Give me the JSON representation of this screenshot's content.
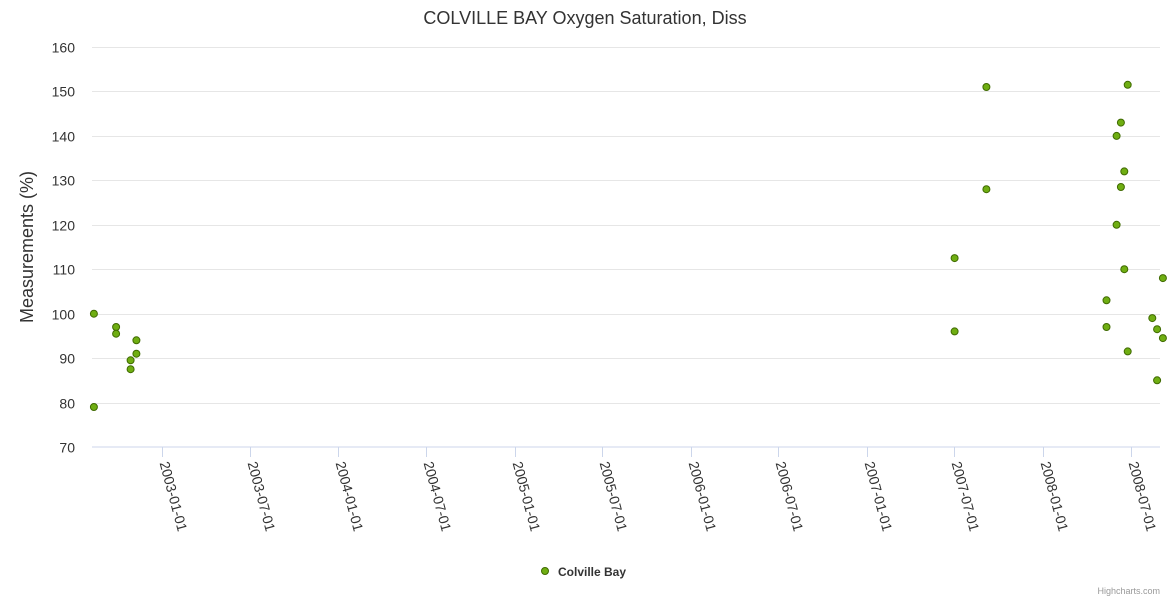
{
  "chart_data": {
    "type": "scatter",
    "title": "COLVILLE BAY Oxygen Saturation, Diss",
    "ylabel": "Measurements (%)",
    "xlabel": "",
    "ylim": [
      70,
      160
    ],
    "yticks": [
      70,
      80,
      90,
      100,
      110,
      120,
      130,
      140,
      150,
      160
    ],
    "xlim": [
      "2002-08-08",
      "2008-08-31"
    ],
    "xticks": [
      "2003-01-01",
      "2003-07-01",
      "2004-01-01",
      "2004-07-01",
      "2005-01-01",
      "2005-07-01",
      "2006-01-01",
      "2006-07-01",
      "2007-01-01",
      "2007-07-01",
      "2008-01-01",
      "2008-07-01"
    ],
    "legend_position": "bottom-center",
    "series": [
      {
        "name": "Colville Bay",
        "color": "#7cb5ec",
        "marker_fill": "#6fae12",
        "marker_stroke": "#3f6a00",
        "points": [
          {
            "x": "2002-08-12",
            "y": 100
          },
          {
            "x": "2002-08-12",
            "y": 79
          },
          {
            "x": "2002-09-27",
            "y": 97
          },
          {
            "x": "2002-09-27",
            "y": 95.5
          },
          {
            "x": "2002-10-27",
            "y": 89.5
          },
          {
            "x": "2002-10-27",
            "y": 87.5
          },
          {
            "x": "2002-11-08",
            "y": 94
          },
          {
            "x": "2002-11-08",
            "y": 91
          },
          {
            "x": "2007-07-02",
            "y": 112.5
          },
          {
            "x": "2007-07-02",
            "y": 96
          },
          {
            "x": "2007-09-06",
            "y": 151
          },
          {
            "x": "2007-09-06",
            "y": 128
          },
          {
            "x": "2008-05-12",
            "y": 103
          },
          {
            "x": "2008-05-12",
            "y": 97
          },
          {
            "x": "2008-06-02",
            "y": 140
          },
          {
            "x": "2008-06-02",
            "y": 120
          },
          {
            "x": "2008-06-11",
            "y": 143
          },
          {
            "x": "2008-06-11",
            "y": 128.5
          },
          {
            "x": "2008-06-18",
            "y": 132
          },
          {
            "x": "2008-06-18",
            "y": 110
          },
          {
            "x": "2008-06-25",
            "y": 151.5
          },
          {
            "x": "2008-06-25",
            "y": 91.5
          },
          {
            "x": "2008-08-15",
            "y": 99
          },
          {
            "x": "2008-08-25",
            "y": 96.5
          },
          {
            "x": "2008-08-25",
            "y": 85
          },
          {
            "x": "2008-09-06",
            "y": 108
          },
          {
            "x": "2008-09-06",
            "y": 94.5
          }
        ]
      }
    ]
  },
  "credits": "Highcharts.com"
}
